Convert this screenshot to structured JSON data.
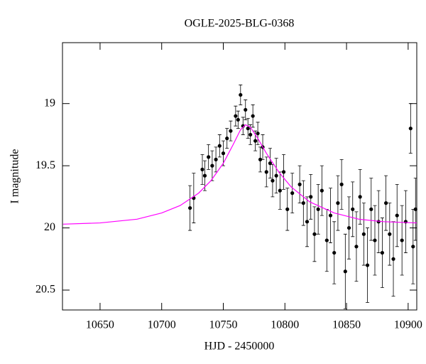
{
  "chart_data": {
    "type": "scatter",
    "title": "OGLE-2025-BLG-0368",
    "x_label": "HJD - 2450000",
    "y_label": "I magnitude",
    "xlim": [
      10619.5,
      10907
    ],
    "ylim": [
      18.51,
      20.66
    ],
    "y_inverted": true,
    "xticks": [
      10650,
      10700,
      10750,
      10800,
      10850,
      10900
    ],
    "yticks": [
      19,
      19.5,
      20,
      20.5
    ],
    "points": {
      "color": "#000000",
      "x": [
        10723,
        10726,
        10733,
        10735,
        10738,
        10741,
        10744,
        10747,
        10750,
        10753,
        10756,
        10760,
        10762,
        10764,
        10766,
        10768,
        10770,
        10772,
        10774,
        10776,
        10778,
        10780,
        10782,
        10785,
        10788,
        10790,
        10793,
        10796,
        10799,
        10802,
        10806,
        10812,
        10815,
        10818,
        10821,
        10824,
        10827,
        10830,
        10834,
        10837,
        10840,
        10843,
        10846,
        10849,
        10852,
        10855,
        10858,
        10861,
        10864,
        10867,
        10870,
        10873,
        10876,
        10879,
        10882,
        10885,
        10888,
        10891,
        10895,
        10898,
        10902,
        10904,
        10906
      ],
      "values": [
        19.84,
        19.76,
        19.53,
        19.58,
        19.43,
        19.5,
        19.45,
        19.34,
        19.4,
        19.28,
        19.22,
        19.1,
        19.13,
        18.93,
        19.18,
        19.05,
        19.2,
        19.25,
        19.1,
        19.3,
        19.24,
        19.45,
        19.35,
        19.55,
        19.48,
        19.62,
        19.58,
        19.7,
        19.55,
        19.85,
        19.72,
        19.65,
        19.8,
        19.95,
        19.75,
        20.05,
        19.85,
        19.7,
        20.1,
        19.9,
        20.2,
        19.8,
        19.65,
        20.35,
        20.0,
        19.85,
        20.15,
        19.75,
        20.05,
        20.3,
        19.85,
        20.1,
        19.95,
        20.2,
        19.8,
        20.05,
        20.25,
        19.9,
        20.1,
        19.95,
        19.2,
        20.15,
        19.85
      ],
      "errors": [
        0.18,
        0.2,
        0.12,
        0.12,
        0.1,
        0.12,
        0.1,
        0.09,
        0.1,
        0.08,
        0.08,
        0.08,
        0.07,
        0.08,
        0.07,
        0.08,
        0.08,
        0.08,
        0.09,
        0.08,
        0.09,
        0.1,
        0.1,
        0.12,
        0.12,
        0.13,
        0.14,
        0.15,
        0.14,
        0.17,
        0.16,
        0.15,
        0.18,
        0.2,
        0.18,
        0.22,
        0.2,
        0.2,
        0.25,
        0.22,
        0.25,
        0.22,
        0.2,
        0.3,
        0.25,
        0.22,
        0.28,
        0.22,
        0.25,
        0.3,
        0.25,
        0.28,
        0.25,
        0.28,
        0.22,
        0.25,
        0.3,
        0.25,
        0.28,
        0.25,
        0.2,
        0.3,
        0.25
      ]
    },
    "model": {
      "color": "#ff00ff",
      "x": [
        10620,
        10650,
        10680,
        10700,
        10715,
        10730,
        10740,
        10750,
        10758,
        10764,
        10768,
        10772,
        10778,
        10785,
        10795,
        10805,
        10820,
        10840,
        10860,
        10880,
        10907
      ],
      "values": [
        19.97,
        19.96,
        19.93,
        19.88,
        19.82,
        19.72,
        19.62,
        19.48,
        19.33,
        19.21,
        19.17,
        19.19,
        19.28,
        19.4,
        19.55,
        19.67,
        19.79,
        19.88,
        19.93,
        19.95,
        19.96
      ]
    }
  }
}
